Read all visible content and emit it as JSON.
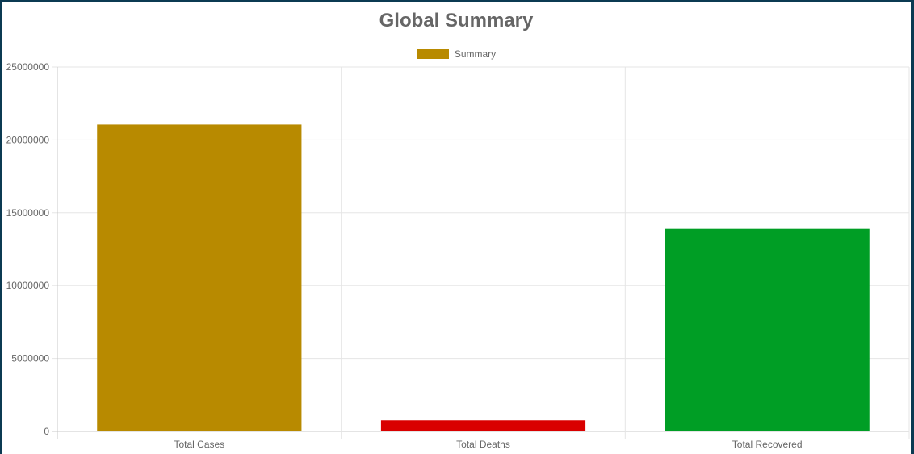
{
  "chart_data": {
    "type": "bar",
    "title": "Global Summary",
    "series": [
      {
        "name": "Summary",
        "values": [
          21050000,
          760000,
          13900000
        ]
      }
    ],
    "categories": [
      "Total Cases",
      "Total Deaths",
      "Total Recovered"
    ],
    "bar_colors": [
      "#b88a00",
      "#d90000",
      "#009e25"
    ],
    "ylim": [
      0,
      25000000
    ],
    "yticks": [
      "0",
      "5000000",
      "10000000",
      "15000000",
      "20000000",
      "25000000"
    ],
    "grid": true,
    "legend_position": "top-center",
    "xlabel": "",
    "ylabel": ""
  }
}
